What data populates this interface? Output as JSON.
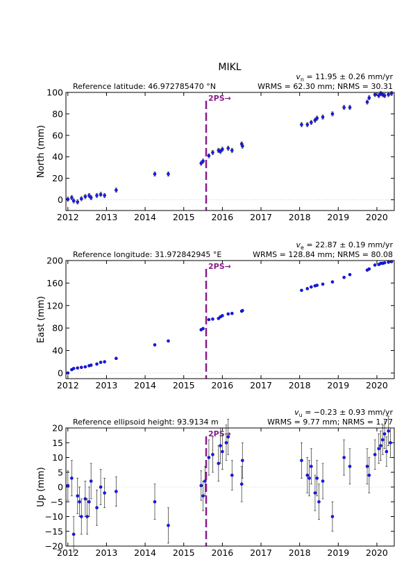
{
  "title": "MIKL",
  "chart_data": [
    {
      "type": "scatter",
      "ylabel": "North (mm)",
      "annotation_left": "Reference latitude: 46.972785470 °N",
      "velocity": {
        "symbol": "v",
        "subscript": "n",
        "text": " = 11.95 ± 0.26 mm/yr"
      },
      "rms": "WRMS = 62.30 mm; NRMS = 30.31",
      "event": {
        "x": 2015.58,
        "label": "2PS→",
        "color": "#8b1a8b"
      },
      "xlim": [
        2011.95,
        2020.45
      ],
      "xticks": [
        2012,
        2013,
        2014,
        2015,
        2016,
        2017,
        2018,
        2019,
        2020
      ],
      "ylim": [
        -10,
        100
      ],
      "yticks": [
        0,
        20,
        40,
        60,
        80,
        100
      ],
      "zero_line": true,
      "series": [
        {
          "color": "#1a1aff",
          "x": [
            2012.0,
            2012.1,
            2012.15,
            2012.25,
            2012.35,
            2012.45,
            2012.55,
            2012.6,
            2012.75,
            2012.85,
            2012.95,
            2013.25,
            2014.25,
            2014.6,
            2015.45,
            2015.5,
            2015.65,
            2015.75,
            2015.9,
            2015.95,
            2016.0,
            2016.15,
            2016.25,
            2016.5,
            2016.52,
            2018.05,
            2018.2,
            2018.3,
            2018.4,
            2018.45,
            2018.6,
            2018.85,
            2019.15,
            2019.3,
            2019.75,
            2019.8,
            2019.95,
            2020.05,
            2020.1,
            2020.15,
            2020.2,
            2020.3,
            2020.38
          ],
          "values": [
            0.5,
            2,
            -1,
            -2,
            1,
            3,
            4,
            2,
            4,
            5,
            4,
            9,
            24,
            24,
            34,
            36,
            41,
            44,
            46,
            45,
            47,
            48,
            46,
            52,
            50,
            70,
            70,
            72,
            74,
            76,
            77,
            80,
            86,
            86,
            91,
            95,
            98,
            97,
            99,
            98,
            97,
            98,
            99
          ],
          "errors": [
            2,
            2,
            2,
            2,
            2,
            2,
            2,
            2,
            2,
            2,
            2,
            2,
            2,
            2,
            2,
            2,
            2,
            2,
            2,
            2,
            2,
            2,
            2,
            2,
            2,
            2,
            2,
            2,
            2,
            2,
            2,
            2,
            2,
            2,
            2,
            2,
            2,
            2,
            2,
            2,
            2,
            2,
            2
          ]
        }
      ]
    },
    {
      "type": "scatter",
      "ylabel": "East (mm)",
      "annotation_left": "Reference longitude: 31.972842945 °E",
      "velocity": {
        "symbol": "v",
        "subscript": "e",
        "text": " = 22.87 ± 0.19 mm/yr"
      },
      "rms": "WRMS = 128.84 mm; NRMS = 80.08",
      "event": {
        "x": 2015.58,
        "label": "2PS→",
        "color": "#8b1a8b"
      },
      "xlim": [
        2011.95,
        2020.45
      ],
      "xticks": [
        2012,
        2013,
        2014,
        2015,
        2016,
        2017,
        2018,
        2019,
        2020
      ],
      "ylim": [
        -10,
        200
      ],
      "yticks": [
        0,
        40,
        80,
        120,
        160,
        200
      ],
      "zero_line": true,
      "series": [
        {
          "color": "#1a1aff",
          "x": [
            2012.0,
            2012.1,
            2012.15,
            2012.25,
            2012.35,
            2012.45,
            2012.55,
            2012.6,
            2012.75,
            2012.85,
            2012.95,
            2013.25,
            2014.25,
            2014.6,
            2015.45,
            2015.5,
            2015.65,
            2015.75,
            2015.9,
            2015.95,
            2016.0,
            2016.15,
            2016.25,
            2016.5,
            2016.52,
            2018.05,
            2018.2,
            2018.3,
            2018.4,
            2018.45,
            2018.6,
            2018.85,
            2019.15,
            2019.3,
            2019.75,
            2019.8,
            2019.95,
            2020.05,
            2020.1,
            2020.15,
            2020.2,
            2020.3,
            2020.38
          ],
          "values": [
            0,
            6,
            8,
            9,
            10,
            11,
            13,
            14,
            16,
            19,
            20,
            26,
            50,
            57,
            77,
            79,
            95,
            96,
            97,
            100,
            102,
            105,
            106,
            110,
            111,
            147,
            150,
            153,
            155,
            156,
            158,
            162,
            170,
            175,
            183,
            185,
            192,
            193,
            195,
            195,
            196,
            197,
            198
          ],
          "errors": [
            1.5,
            1.5,
            1.5,
            1.5,
            1.5,
            1.5,
            1.5,
            1.5,
            1.5,
            1.5,
            1.5,
            1.5,
            1.5,
            1.5,
            1.5,
            1.5,
            1.5,
            1.5,
            1.5,
            1.5,
            1.5,
            1.5,
            1.5,
            1.5,
            1.5,
            1.5,
            1.5,
            1.5,
            1.5,
            1.5,
            1.5,
            1.5,
            1.5,
            1.5,
            1.5,
            1.5,
            1.5,
            1.5,
            1.5,
            1.5,
            1.5,
            1.5,
            1.5
          ]
        }
      ]
    },
    {
      "type": "scatter",
      "ylabel": "Up (mm)",
      "annotation_left": "Reference ellipsoid height: 93.9134 m",
      "velocity": {
        "symbol": "v",
        "subscript": "u",
        "text": " = −0.23 ± 0.93 mm/yr"
      },
      "rms": "WRMS = 9.77 mm; NRMS = 1.77",
      "event": {
        "x": 2015.58,
        "label": "2PS→",
        "color": "#8b1a8b"
      },
      "xlim": [
        2011.95,
        2020.45
      ],
      "xticks": [
        2012,
        2013,
        2014,
        2015,
        2016,
        2017,
        2018,
        2019,
        2020
      ],
      "ylim": [
        -20,
        20
      ],
      "yticks": [
        {
          "value": -20,
          "label": "−20"
        },
        {
          "value": -15,
          "label": "−15"
        },
        {
          "value": -10,
          "label": "−10"
        },
        {
          "value": -5,
          "label": "−5"
        },
        0,
        5,
        10,
        15,
        20
      ],
      "zero_line": true,
      "series": [
        {
          "color": "#1a1aff",
          "x": [
            2012.0,
            2012.1,
            2012.15,
            2012.25,
            2012.3,
            2012.35,
            2012.45,
            2012.5,
            2012.55,
            2012.6,
            2012.75,
            2012.85,
            2012.95,
            2013.25,
            2014.25,
            2014.6,
            2015.45,
            2015.5,
            2015.55,
            2015.65,
            2015.75,
            2015.9,
            2015.95,
            2016.0,
            2016.1,
            2016.15,
            2016.25,
            2016.5,
            2016.52,
            2018.05,
            2018.2,
            2018.25,
            2018.3,
            2018.4,
            2018.45,
            2018.5,
            2018.6,
            2018.85,
            2019.15,
            2019.3,
            2019.75,
            2019.8,
            2019.95,
            2020.05,
            2020.1,
            2020.15,
            2020.2,
            2020.25,
            2020.3,
            2020.35
          ],
          "values": [
            0.5,
            3,
            -16,
            -3,
            -5,
            -10,
            -4,
            -10,
            -5,
            2,
            -7,
            0,
            -2,
            -1.5,
            -5,
            -13,
            0.5,
            -3,
            2,
            10,
            11,
            8,
            14,
            12,
            15,
            17,
            4,
            1,
            9,
            9,
            4,
            3,
            7,
            -2,
            3,
            -5,
            2,
            -10,
            10,
            7,
            7,
            4,
            11,
            13,
            14,
            16,
            18,
            12,
            19,
            15
          ],
          "errors": [
            5,
            6,
            6,
            6,
            5,
            6,
            6,
            6,
            5,
            6,
            6,
            6,
            5,
            5,
            6,
            6,
            5,
            5,
            5,
            6,
            6,
            6,
            6,
            6,
            6,
            6,
            5,
            6,
            6,
            6,
            6,
            6,
            6,
            6,
            6,
            6,
            6,
            5,
            6,
            6,
            6,
            6,
            5,
            5,
            5,
            5,
            5,
            5,
            5,
            5
          ]
        }
      ]
    }
  ]
}
